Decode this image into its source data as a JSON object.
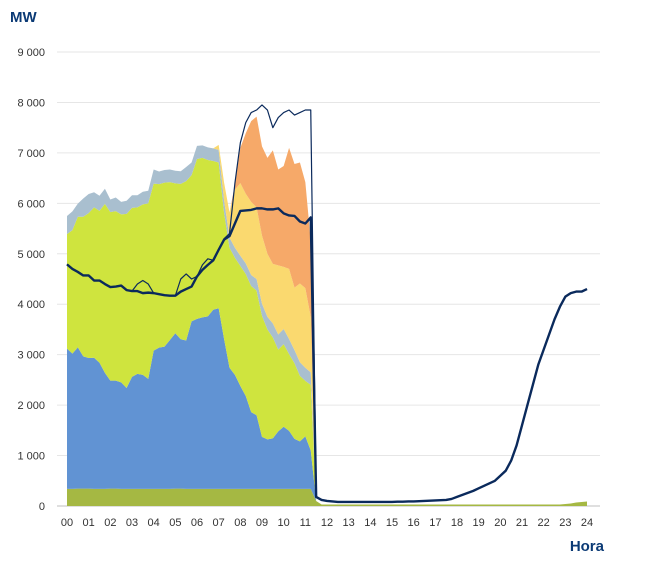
{
  "chart_data": {
    "type": "area",
    "ylabel": "MW",
    "xlabel": "Hora",
    "ylim": [
      0,
      9000
    ],
    "y_ticks": [
      "0",
      "1 000",
      "2 000",
      "3 000",
      "4 000",
      "5 000",
      "6 000",
      "7 000",
      "8 000",
      "9 000"
    ],
    "x_ticks": [
      "00",
      "01",
      "02",
      "03",
      "04",
      "05",
      "06",
      "07",
      "08",
      "09",
      "10",
      "11",
      "12",
      "13",
      "14",
      "15",
      "16",
      "17",
      "18",
      "19",
      "20",
      "21",
      "22",
      "23",
      "24"
    ],
    "x": [
      0,
      0.25,
      0.5,
      0.75,
      1,
      1.25,
      1.5,
      1.75,
      2,
      2.25,
      2.5,
      2.75,
      3,
      3.25,
      3.5,
      3.75,
      4,
      4.25,
      4.5,
      4.75,
      5,
      5.25,
      5.5,
      5.75,
      6,
      6.25,
      6.5,
      6.75,
      7,
      7.25,
      7.5,
      7.75,
      8,
      8.25,
      8.5,
      8.75,
      9,
      9.25,
      9.5,
      9.75,
      10,
      10.25,
      10.5,
      10.75,
      11,
      11.25,
      11.5,
      11.75,
      12,
      12.25,
      12.5,
      12.75,
      13,
      13.25,
      13.5,
      13.75,
      14,
      14.25,
      14.5,
      14.75,
      15,
      15.25,
      15.5,
      15.75,
      16,
      16.25,
      16.5,
      16.75,
      17,
      17.25,
      17.5,
      17.75,
      18,
      18.25,
      18.5,
      18.75,
      19,
      19.25,
      19.5,
      19.75,
      20,
      20.25,
      20.5,
      20.75,
      21,
      21.25,
      21.5,
      21.75,
      22,
      22.25,
      22.5,
      22.75,
      23,
      23.25,
      23.5,
      23.75,
      24
    ],
    "series": [
      {
        "color": "#a5b843",
        "values": [
          340,
          340,
          345,
          345,
          345,
          340,
          340,
          340,
          345,
          345,
          340,
          340,
          340,
          340,
          340,
          340,
          340,
          340,
          340,
          340,
          345,
          345,
          340,
          340,
          340,
          340,
          340,
          340,
          340,
          340,
          340,
          340,
          340,
          340,
          340,
          340,
          340,
          340,
          340,
          340,
          340,
          340,
          340,
          340,
          340,
          340,
          100,
          30,
          30,
          30,
          30,
          30,
          30,
          30,
          30,
          30,
          30,
          30,
          30,
          30,
          30,
          30,
          30,
          30,
          30,
          30,
          30,
          30,
          30,
          30,
          30,
          30,
          30,
          30,
          30,
          30,
          30,
          30,
          30,
          30,
          30,
          30,
          30,
          30,
          30,
          30,
          30,
          30,
          30,
          30,
          30,
          30,
          40,
          50,
          70,
          80,
          90
        ]
      },
      {
        "color": "#6193d3",
        "values": [
          2780,
          2680,
          2800,
          2620,
          2590,
          2600,
          2500,
          2300,
          2140,
          2140,
          2110,
          2000,
          2220,
          2280,
          2260,
          2180,
          2740,
          2800,
          2820,
          2950,
          3080,
          2960,
          2940,
          3320,
          3370,
          3400,
          3420,
          3550,
          3580,
          2970,
          2400,
          2260,
          2040,
          1840,
          1520,
          1460,
          1030,
          980,
          1000,
          1140,
          1230,
          1150,
          990,
          940,
          1040,
          760,
          0,
          0,
          0,
          0,
          0,
          0,
          0,
          0,
          0,
          0,
          0,
          0,
          0,
          0,
          0,
          0,
          0,
          0,
          0,
          0,
          0,
          0,
          0,
          0,
          0,
          0,
          0,
          0,
          0,
          0,
          0,
          0,
          0,
          0,
          0,
          0,
          0,
          0,
          0,
          0,
          0,
          0,
          0,
          0,
          0,
          0,
          0,
          0,
          0,
          0,
          0
        ]
      },
      {
        "color": "#cfe43e",
        "values": [
          2270,
          2450,
          2590,
          2770,
          2870,
          2980,
          3010,
          3350,
          3340,
          3360,
          3330,
          3450,
          3350,
          3300,
          3380,
          3480,
          3310,
          3240,
          3250,
          3130,
          2970,
          3080,
          3160,
          2900,
          3170,
          3160,
          3100,
          2950,
          2890,
          2500,
          2380,
          2320,
          2380,
          2420,
          2500,
          2470,
          2400,
          2180,
          2000,
          1620,
          1640,
          1520,
          1500,
          1300,
          1100,
          1300,
          0,
          0,
          0,
          0,
          0,
          0,
          0,
          0,
          0,
          0,
          0,
          0,
          0,
          0,
          0,
          0,
          0,
          0,
          0,
          0,
          0,
          0,
          0,
          0,
          0,
          0,
          0,
          0,
          0,
          0,
          0,
          0,
          0,
          0,
          0,
          0,
          0,
          0,
          0,
          0,
          0,
          0,
          0,
          0,
          0,
          0,
          0,
          0,
          0,
          0,
          0
        ]
      },
      {
        "color": "#a9bfcf",
        "values": [
          360,
          370,
          260,
          360,
          380,
          300,
          300,
          300,
          250,
          270,
          250,
          260,
          250,
          240,
          250,
          250,
          280,
          250,
          250,
          250,
          250,
          250,
          280,
          250,
          260,
          250,
          250,
          250,
          250,
          250,
          200,
          200,
          200,
          210,
          220,
          230,
          240,
          250,
          280,
          300,
          300,
          300,
          260,
          270,
          260,
          250,
          0,
          0,
          0,
          0,
          0,
          0,
          0,
          0,
          0,
          0,
          0,
          0,
          0,
          0,
          0,
          0,
          0,
          0,
          0,
          0,
          0,
          0,
          0,
          0,
          0,
          0,
          0,
          0,
          0,
          0,
          0,
          0,
          0,
          0,
          0,
          0,
          0,
          0,
          0,
          0,
          0,
          0,
          0,
          0,
          0,
          0,
          0,
          0,
          0,
          0,
          0
        ]
      },
      {
        "color": "#fad96f",
        "values": [
          0,
          0,
          0,
          0,
          0,
          0,
          0,
          0,
          0,
          0,
          0,
          0,
          0,
          0,
          0,
          0,
          0,
          0,
          0,
          0,
          0,
          0,
          0,
          0,
          0,
          0,
          0,
          0,
          100,
          350,
          500,
          1150,
          1440,
          1380,
          1450,
          1420,
          1350,
          1250,
          1180,
          1370,
          1230,
          1390,
          1240,
          1560,
          1580,
          1100,
          0,
          0,
          0,
          0,
          0,
          0,
          0,
          0,
          0,
          0,
          0,
          0,
          0,
          0,
          0,
          0,
          0,
          0,
          0,
          0,
          0,
          0,
          0,
          0,
          0,
          0,
          0,
          0,
          0,
          0,
          0,
          0,
          0,
          0,
          0,
          0,
          0,
          0,
          0,
          0,
          0,
          0,
          0,
          0,
          0,
          0,
          0,
          0,
          0,
          0,
          0
        ]
      },
      {
        "color": "#f6a969",
        "values": [
          0,
          0,
          0,
          0,
          0,
          0,
          0,
          0,
          0,
          0,
          0,
          0,
          0,
          0,
          0,
          0,
          0,
          0,
          0,
          0,
          0,
          0,
          0,
          0,
          0,
          0,
          0,
          0,
          0,
          0,
          0,
          100,
          700,
          1200,
          1600,
          1800,
          1770,
          1900,
          2250,
          1900,
          2000,
          2400,
          2450,
          2400,
          2100,
          1500,
          0,
          0,
          0,
          0,
          0,
          0,
          0,
          0,
          0,
          0,
          0,
          0,
          0,
          0,
          0,
          0,
          0,
          0,
          0,
          0,
          0,
          0,
          0,
          0,
          0,
          0,
          0,
          0,
          0,
          0,
          0,
          0,
          0,
          0,
          0,
          0,
          0,
          0,
          0,
          0,
          0,
          0,
          0,
          0,
          0,
          0,
          0,
          0,
          0,
          0,
          0
        ]
      }
    ],
    "lines": [
      {
        "color": "#0b2a5c",
        "width": 2.4,
        "values": [
          4790,
          4700,
          4640,
          4570,
          4570,
          4470,
          4470,
          4400,
          4340,
          4350,
          4370,
          4280,
          4260,
          4260,
          4220,
          4230,
          4220,
          4200,
          4180,
          4170,
          4170,
          4250,
          4300,
          4350,
          4550,
          4680,
          4780,
          4870,
          5080,
          5280,
          5350,
          5600,
          5850,
          5860,
          5870,
          5900,
          5900,
          5880,
          5880,
          5900,
          5800,
          5760,
          5750,
          5640,
          5600,
          5720,
          180,
          120,
          100,
          90,
          80,
          80,
          80,
          80,
          80,
          80,
          80,
          80,
          80,
          80,
          80,
          85,
          85,
          90,
          90,
          95,
          100,
          105,
          110,
          115,
          120,
          140,
          180,
          220,
          260,
          300,
          350,
          400,
          450,
          500,
          600,
          700,
          900,
          1200,
          1600,
          2000,
          2400,
          2800,
          3100,
          3400,
          3700,
          3950,
          4150,
          4220,
          4250,
          4250,
          4300
        ]
      },
      {
        "color": "#0b2a5c",
        "width": 1.2,
        "values": [
          4790,
          4700,
          4640,
          4570,
          4570,
          4470,
          4470,
          4400,
          4340,
          4350,
          4370,
          4280,
          4260,
          4400,
          4470,
          4400,
          4220,
          4200,
          4180,
          4170,
          4170,
          4500,
          4600,
          4500,
          4550,
          4780,
          4900,
          4870,
          5080,
          5300,
          5400,
          6400,
          7200,
          7600,
          7800,
          7850,
          7950,
          7850,
          7500,
          7700,
          7800,
          7850,
          7750,
          7800,
          7850,
          7850,
          180,
          120,
          100,
          90,
          80,
          80,
          80,
          80,
          80,
          80,
          80,
          80,
          80,
          80,
          80,
          85,
          85,
          90,
          90,
          95,
          100,
          105,
          110,
          115,
          120,
          140,
          180,
          220,
          260,
          300,
          350,
          400,
          450,
          500,
          600,
          700,
          900,
          1200,
          1600,
          2000,
          2400,
          2800,
          3100,
          3400,
          3700,
          3950,
          4150,
          4220,
          4250,
          4250,
          4300
        ]
      }
    ],
    "grid": true,
    "legend": "none"
  }
}
